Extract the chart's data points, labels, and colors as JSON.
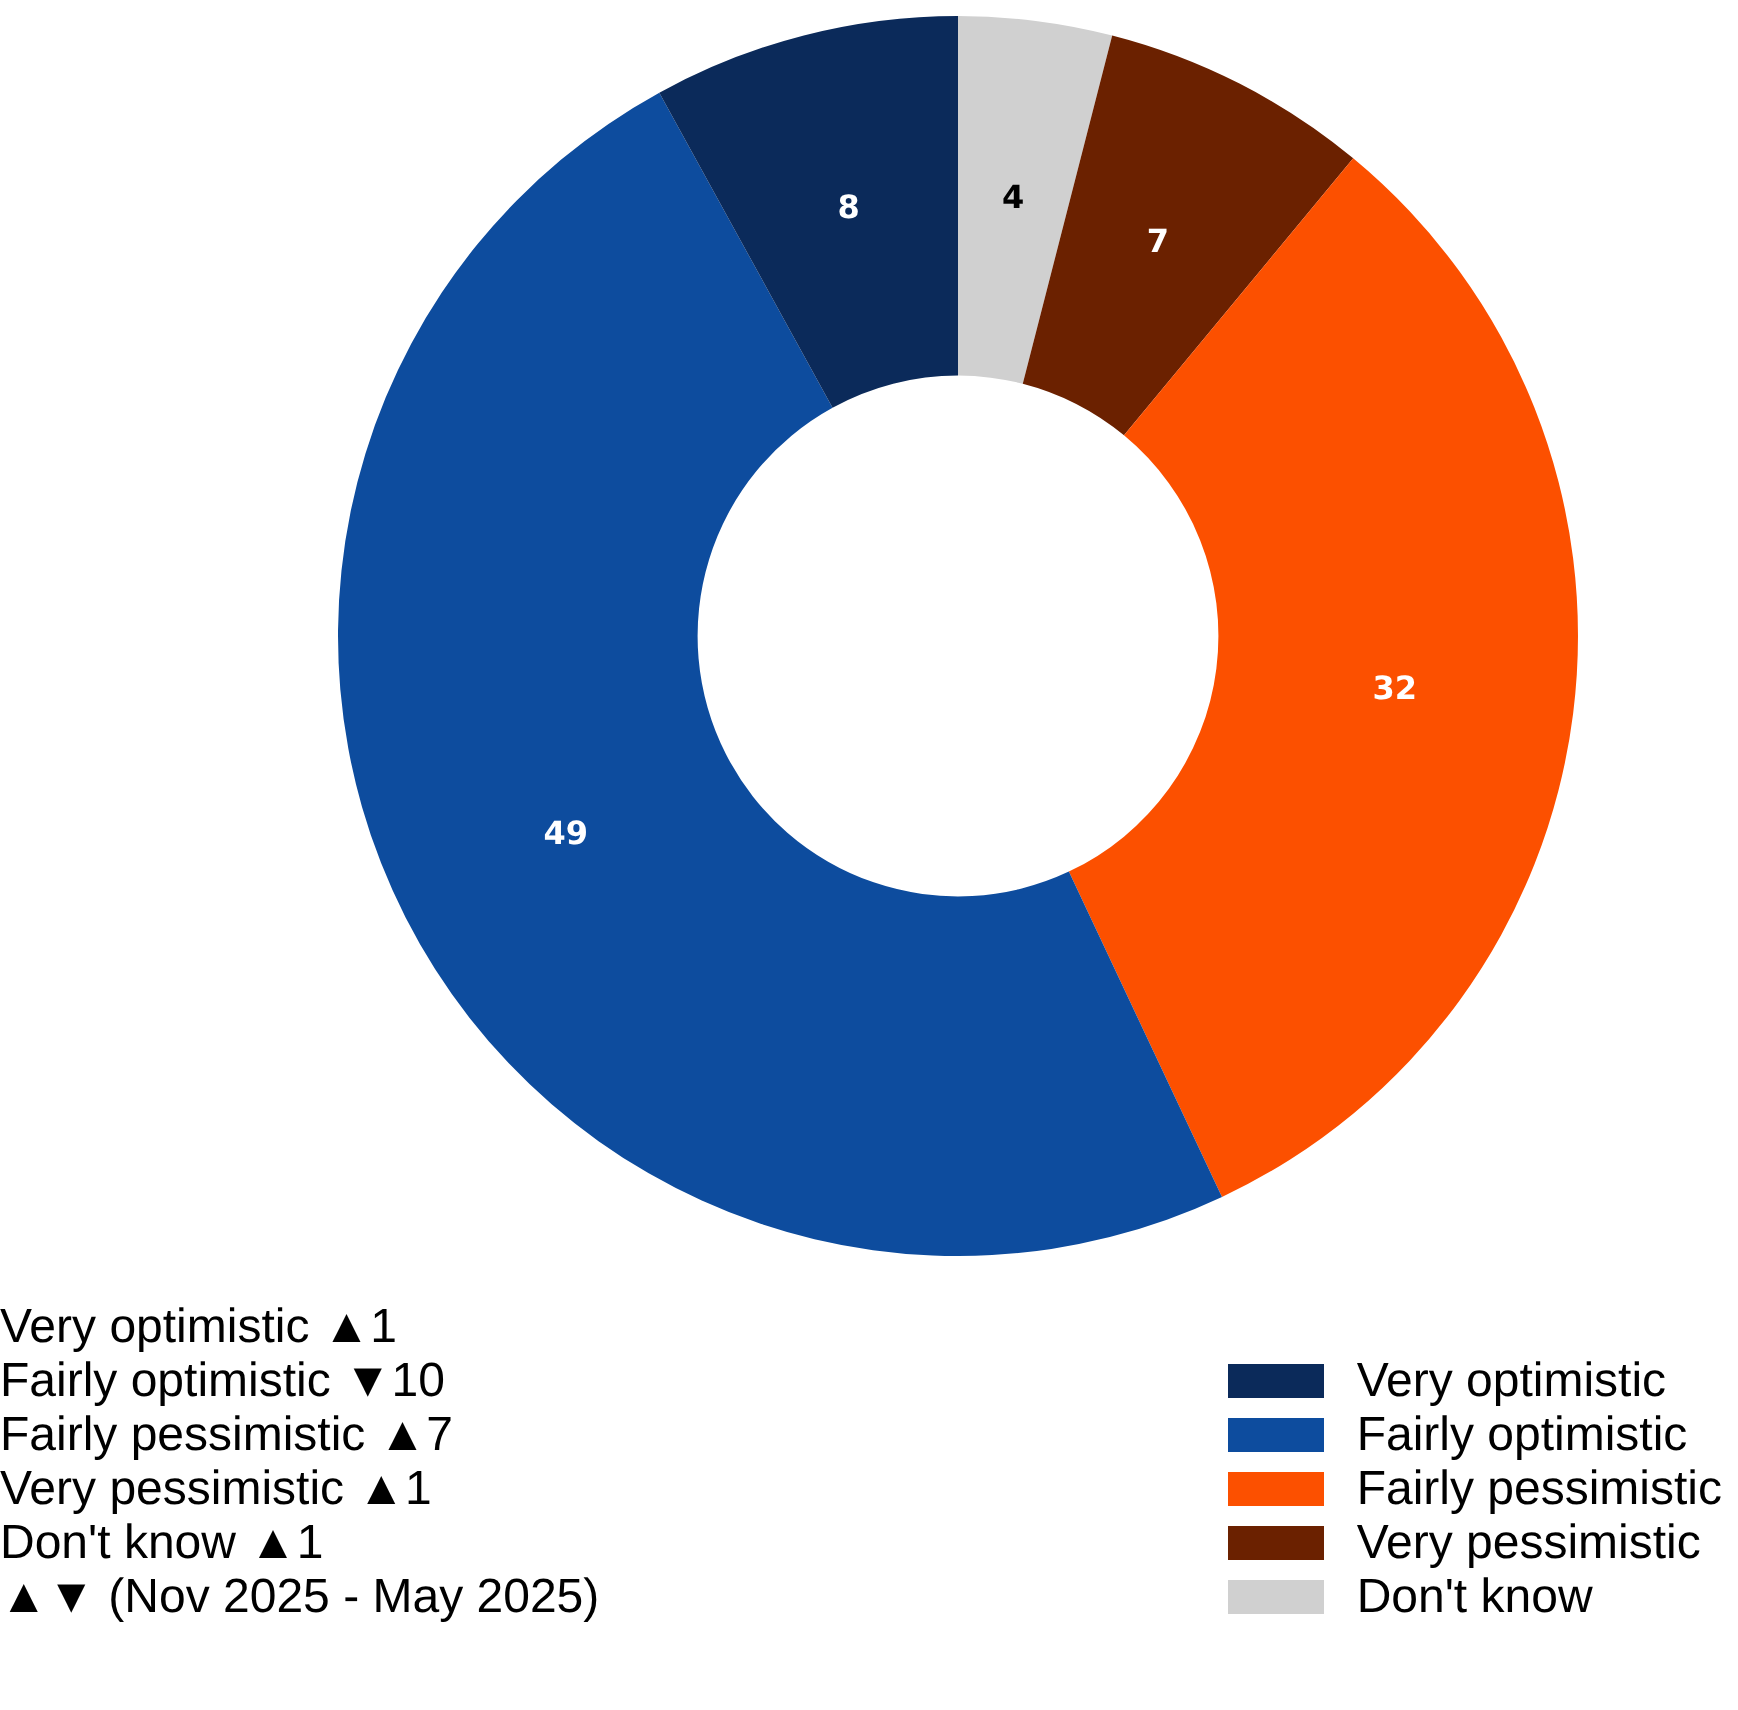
{
  "chart_data": {
    "type": "donut",
    "categories": [
      "Very optimistic",
      "Fairly optimistic",
      "Fairly pessimistic",
      "Very pessimistic",
      "Don't know"
    ],
    "values": [
      8,
      49,
      32,
      7,
      4
    ],
    "colors": [
      "#0b2a5a",
      "#0d4c9e",
      "#fc5000",
      "#6b2100",
      "#d0d0d0"
    ],
    "data_labels": true,
    "legend": "bottom right",
    "annotations": [
      "Very optimistic ▲1",
      "Fairly optimistic ▼10",
      "Fairly pessimistic ▲7",
      "Very pessimistic ▲1",
      "Don't know ▲1",
      "▲▼ (Nov 2025 - May 2025)"
    ]
  }
}
